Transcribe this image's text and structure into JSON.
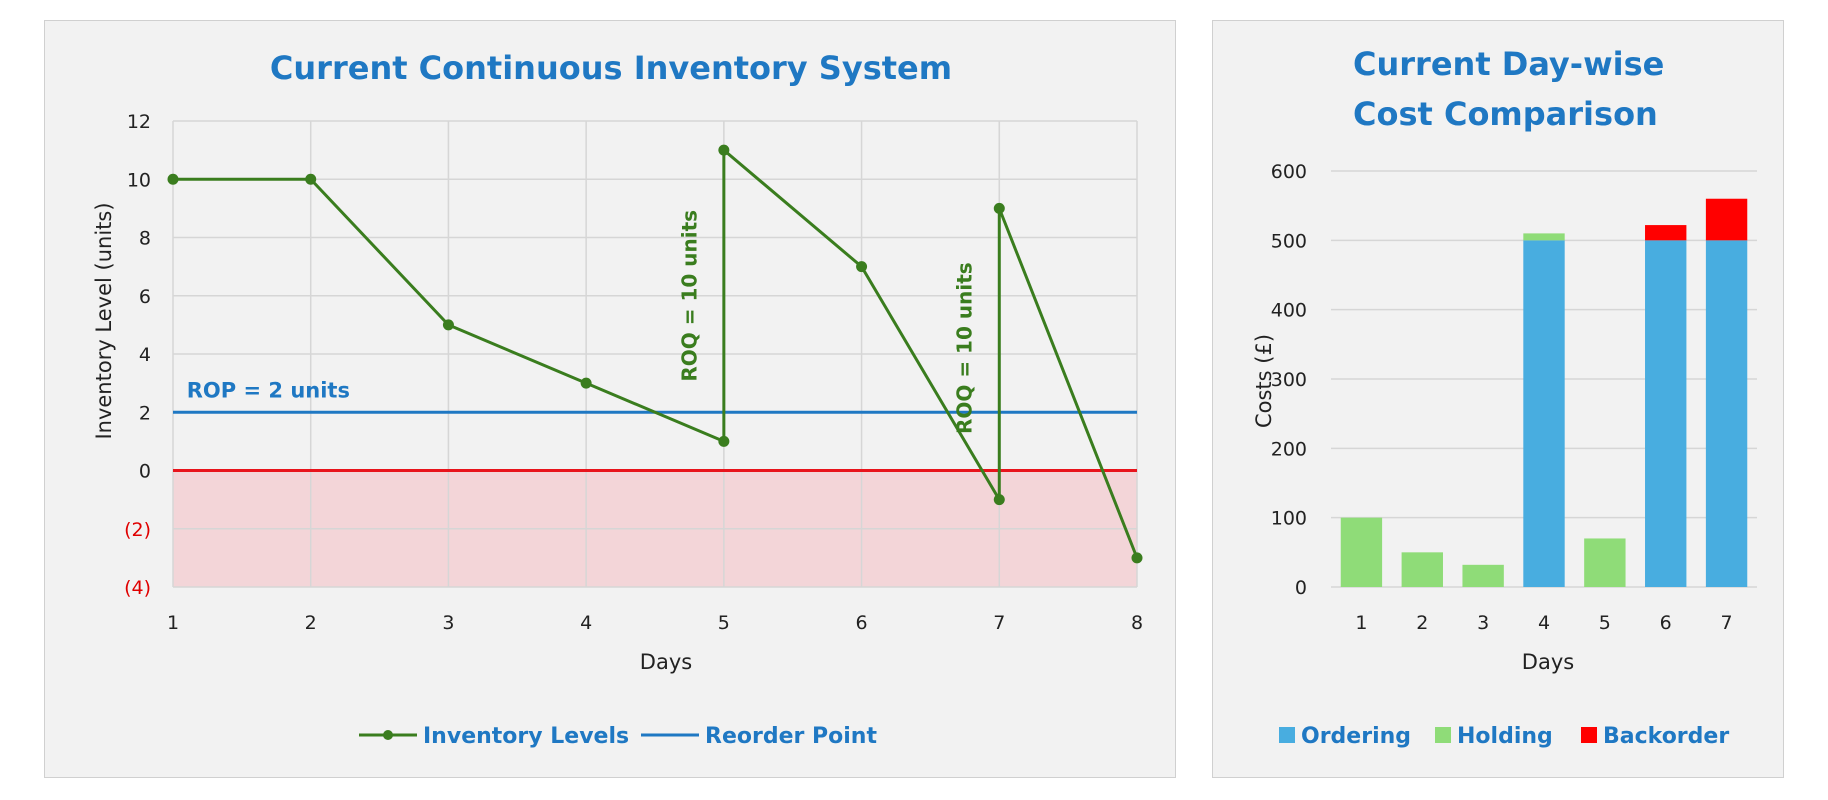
{
  "colors": {
    "inventory": "#3a7d1e",
    "reorder": "#1f78c3",
    "zero_line": "#e8141c",
    "negative_zone": "#f3d5d8",
    "ordering": "#48ade0",
    "holding": "#8fdc78",
    "backorder": "#ff0000",
    "grid": "#d6d6d6",
    "title": "#1f78c3"
  },
  "chart_data": [
    {
      "type": "line",
      "title": "Current Continuous Inventory System",
      "xlabel": "Days",
      "ylabel": "Inventory Level (units)",
      "x_ticks": [
        "1",
        "2",
        "3",
        "4",
        "5",
        "6",
        "7",
        "8"
      ],
      "xlim": [
        1,
        8
      ],
      "ylim": [
        -4,
        12
      ],
      "y_ticks": [
        {
          "value": 12,
          "label": "12"
        },
        {
          "value": 10,
          "label": "10"
        },
        {
          "value": 8,
          "label": "8"
        },
        {
          "value": 6,
          "label": "6"
        },
        {
          "value": 4,
          "label": "4"
        },
        {
          "value": 2,
          "label": "2"
        },
        {
          "value": 0,
          "label": "0"
        },
        {
          "value": -2,
          "label": "(2)"
        },
        {
          "value": -4,
          "label": "(4)"
        }
      ],
      "series": [
        {
          "name": "Inventory Levels",
          "points": [
            [
              1,
              10
            ],
            [
              2,
              10
            ],
            [
              3,
              5
            ],
            [
              4,
              3
            ],
            [
              5,
              1
            ],
            [
              5,
              11
            ],
            [
              6,
              7
            ],
            [
              7,
              -1
            ],
            [
              7,
              9
            ],
            [
              8,
              -3
            ]
          ]
        },
        {
          "name": "Reorder Point",
          "points": [
            [
              1,
              2
            ],
            [
              8,
              2
            ]
          ]
        }
      ],
      "annotations": [
        {
          "text": "ROP = 2 units",
          "x": 1.1,
          "y": 2.5
        },
        {
          "text": "ROQ = 10 units",
          "x": 4.8,
          "y": 6
        },
        {
          "text": "ROQ = 10 units",
          "x": 6.8,
          "y": 4.2
        }
      ],
      "legend": [
        "Inventory Levels",
        "Reorder Point"
      ]
    },
    {
      "type": "bar",
      "stacked": true,
      "title_lines": [
        "Current Day-wise",
        "Cost Comparison"
      ],
      "xlabel": "Days",
      "ylabel": "Costs (£)",
      "categories": [
        "1",
        "2",
        "3",
        "4",
        "5",
        "6",
        "7"
      ],
      "ylim": [
        0,
        600
      ],
      "y_ticks": [
        "0",
        "100",
        "200",
        "300",
        "400",
        "500",
        "600"
      ],
      "series": [
        {
          "name": "Ordering",
          "values": [
            0,
            0,
            0,
            500,
            0,
            500,
            500
          ]
        },
        {
          "name": "Holding",
          "values": [
            100,
            50,
            32,
            10,
            70,
            0,
            0
          ]
        },
        {
          "name": "Backorder",
          "values": [
            0,
            0,
            0,
            0,
            0,
            22,
            60
          ]
        }
      ],
      "legend": [
        "Ordering",
        "Holding",
        "Backorder"
      ]
    }
  ]
}
